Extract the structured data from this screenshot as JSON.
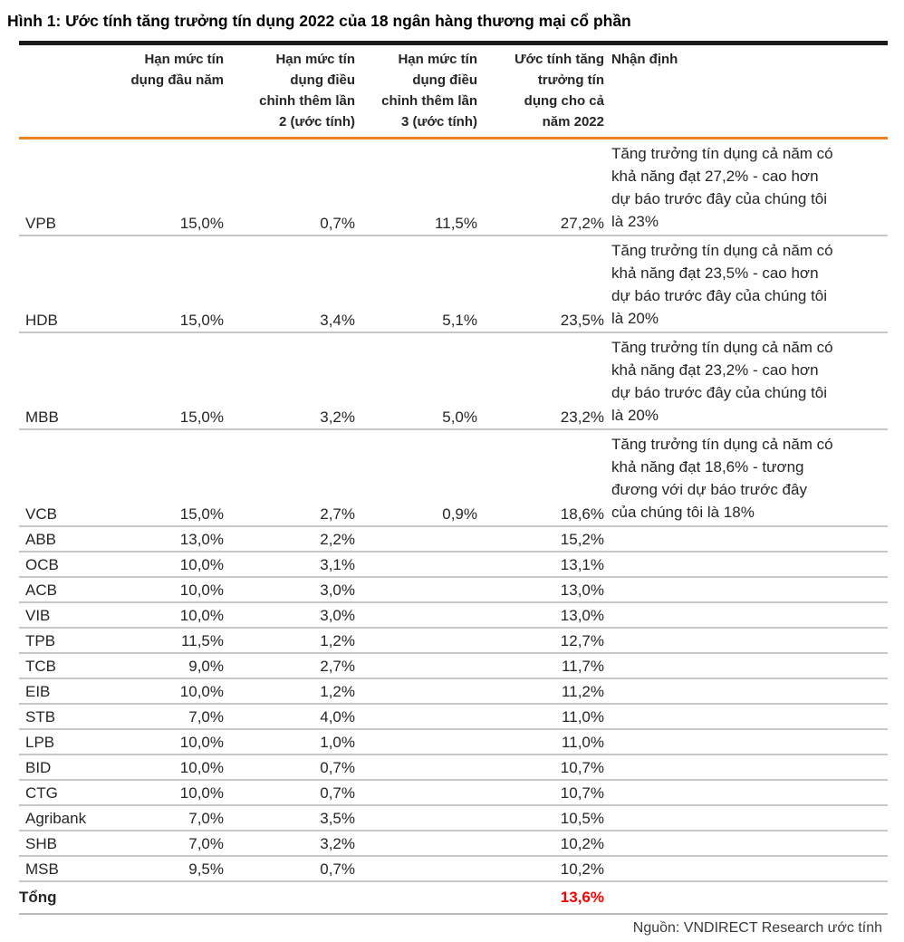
{
  "page": {
    "title": "Hình 1: Ước tính tăng trưởng tín dụng 2022 của 18 ngân hàng thương mại cổ phần",
    "source_note": "Nguồn: VNDIRECT Research ước tính"
  },
  "colors": {
    "accent_orange": "#ef8220",
    "total_red": "#ff0000",
    "grid_gray": "#c7c7c7",
    "rule_black": "#1a1a1a"
  },
  "table": {
    "headers": {
      "bank": "",
      "initial_quota": "Hạn mức tín\ndụng đầu năm",
      "adjustment_2": "Hạn mức tín\ndụng điều\nchỉnh thêm lần\n2 (ước tính)",
      "adjustment_3": "Hạn mức tín\ndụng điều\nchỉnh thêm lần\n3 (ước tính)",
      "full_year_estimate": "Ước tính tăng\ntrưởng tín\ndụng cho cả\nnăm 2022",
      "comment": "Nhận định"
    },
    "rows": [
      {
        "bank": "VPB",
        "initial_quota": "15,0%",
        "adjustment_2": "0,7%",
        "adjustment_3": "11,5%",
        "full_year_estimate": "27,2%",
        "comment": "Tăng trưởng tín dụng cả năm có\nkhả năng đạt 27,2% - cao hơn\ndự báo trước đây của chúng tôi\nlà 23%"
      },
      {
        "bank": "HDB",
        "initial_quota": "15,0%",
        "adjustment_2": "3,4%",
        "adjustment_3": "5,1%",
        "full_year_estimate": "23,5%",
        "comment": "Tăng trưởng tín dụng cả năm có\nkhả năng đạt 23,5% - cao hơn\ndự báo trước đây của chúng tôi\nlà 20%"
      },
      {
        "bank": "MBB",
        "initial_quota": "15,0%",
        "adjustment_2": "3,2%",
        "adjustment_3": "5,0%",
        "full_year_estimate": "23,2%",
        "comment": "Tăng trưởng tín dụng cả năm có\nkhả năng đạt 23,2% - cao hơn\ndự báo trước đây của chúng tôi\nlà 20%"
      },
      {
        "bank": "VCB",
        "initial_quota": "15,0%",
        "adjustment_2": "2,7%",
        "adjustment_3": "0,9%",
        "full_year_estimate": "18,6%",
        "comment": "Tăng trưởng tín dụng cả năm có\nkhả năng đạt 18,6% - tương\nđương với dự báo trước đây\ncủa chúng tôi là 18%"
      },
      {
        "bank": "ABB",
        "initial_quota": "13,0%",
        "adjustment_2": "2,2%",
        "adjustment_3": "",
        "full_year_estimate": "15,2%",
        "comment": ""
      },
      {
        "bank": "OCB",
        "initial_quota": "10,0%",
        "adjustment_2": "3,1%",
        "adjustment_3": "",
        "full_year_estimate": "13,1%",
        "comment": ""
      },
      {
        "bank": "ACB",
        "initial_quota": "10,0%",
        "adjustment_2": "3,0%",
        "adjustment_3": "",
        "full_year_estimate": "13,0%",
        "comment": ""
      },
      {
        "bank": "VIB",
        "initial_quota": "10,0%",
        "adjustment_2": "3,0%",
        "adjustment_3": "",
        "full_year_estimate": "13,0%",
        "comment": ""
      },
      {
        "bank": "TPB",
        "initial_quota": "11,5%",
        "adjustment_2": "1,2%",
        "adjustment_3": "",
        "full_year_estimate": "12,7%",
        "comment": ""
      },
      {
        "bank": "TCB",
        "initial_quota": "9,0%",
        "adjustment_2": "2,7%",
        "adjustment_3": "",
        "full_year_estimate": "11,7%",
        "comment": ""
      },
      {
        "bank": "EIB",
        "initial_quota": "10,0%",
        "adjustment_2": "1,2%",
        "adjustment_3": "",
        "full_year_estimate": "11,2%",
        "comment": ""
      },
      {
        "bank": "STB",
        "initial_quota": "7,0%",
        "adjustment_2": "4,0%",
        "adjustment_3": "",
        "full_year_estimate": "11,0%",
        "comment": ""
      },
      {
        "bank": "LPB",
        "initial_quota": "10,0%",
        "adjustment_2": "1,0%",
        "adjustment_3": "",
        "full_year_estimate": "11,0%",
        "comment": ""
      },
      {
        "bank": "BID",
        "initial_quota": "10,0%",
        "adjustment_2": "0,7%",
        "adjustment_3": "",
        "full_year_estimate": "10,7%",
        "comment": ""
      },
      {
        "bank": "CTG",
        "initial_quota": "10,0%",
        "adjustment_2": "0,7%",
        "adjustment_3": "",
        "full_year_estimate": "10,7%",
        "comment": ""
      },
      {
        "bank": "Agribank",
        "initial_quota": "7,0%",
        "adjustment_2": "3,5%",
        "adjustment_3": "",
        "full_year_estimate": "10,5%",
        "comment": ""
      },
      {
        "bank": "SHB",
        "initial_quota": "7,0%",
        "adjustment_2": "3,2%",
        "adjustment_3": "",
        "full_year_estimate": "10,2%",
        "comment": ""
      },
      {
        "bank": "MSB",
        "initial_quota": "9,5%",
        "adjustment_2": "0,7%",
        "adjustment_3": "",
        "full_year_estimate": "10,2%",
        "comment": ""
      }
    ],
    "total_row": {
      "label": "Tổng",
      "full_year_estimate": "13,6%"
    }
  }
}
